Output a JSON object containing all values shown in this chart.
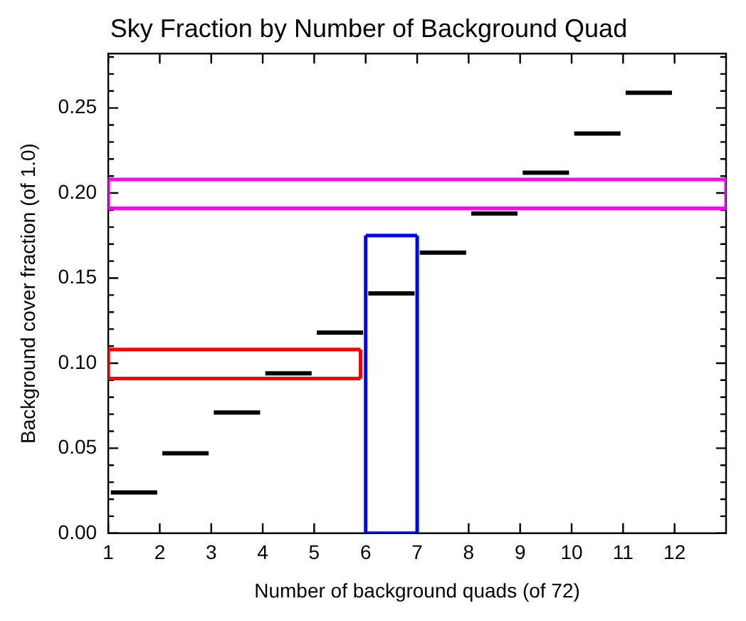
{
  "chart_data": {
    "type": "line",
    "title": "Sky Fraction by Number of Background Quad",
    "xlabel": "Number of background quads (of 72)",
    "ylabel": "Background cover fraction (of 1.0)",
    "xlim": [
      1,
      13
    ],
    "xticks": [
      1,
      2,
      3,
      4,
      5,
      6,
      7,
      8,
      9,
      10,
      11,
      12
    ],
    "ylim": [
      0,
      0.282
    ],
    "yticks": [
      {
        "value": 0,
        "label": "0.00"
      },
      {
        "value": 0.01,
        "label": null
      },
      {
        "value": 0.02,
        "label": null
      },
      {
        "value": 0.03,
        "label": null
      },
      {
        "value": 0.04,
        "label": null
      },
      {
        "value": 0.05,
        "label": "0.05"
      },
      {
        "value": 0.06,
        "label": null
      },
      {
        "value": 0.07,
        "label": null
      },
      {
        "value": 0.08,
        "label": null
      },
      {
        "value": 0.09,
        "label": null
      },
      {
        "value": 0.1,
        "label": "0.10"
      },
      {
        "value": 0.11,
        "label": null
      },
      {
        "value": 0.12,
        "label": null
      },
      {
        "value": 0.13,
        "label": null
      },
      {
        "value": 0.14,
        "label": null
      },
      {
        "value": 0.15,
        "label": "0.15"
      },
      {
        "value": 0.16,
        "label": null
      },
      {
        "value": 0.17,
        "label": null
      },
      {
        "value": 0.18,
        "label": null
      },
      {
        "value": 0.19,
        "label": null
      },
      {
        "value": 0.2,
        "label": "0.20"
      },
      {
        "value": 0.21,
        "label": null
      },
      {
        "value": 0.22,
        "label": null
      },
      {
        "value": 0.23,
        "label": null
      },
      {
        "value": 0.24,
        "label": null
      },
      {
        "value": 0.25,
        "label": "0.25"
      },
      {
        "value": 0.26,
        "label": null
      },
      {
        "value": 0.27,
        "label": null
      },
      {
        "value": 0.28,
        "label": null
      }
    ],
    "grid": false,
    "marker": "none",
    "series": [
      {
        "color": "#000000",
        "x": [
          1.05,
          1.95
        ],
        "values": [
          0.024,
          0.024
        ]
      },
      {
        "color": "#000000",
        "x": [
          2.05,
          2.95
        ],
        "values": [
          0.047,
          0.047
        ]
      },
      {
        "color": "#000000",
        "x": [
          3.05,
          3.95
        ],
        "values": [
          0.071,
          0.071
        ]
      },
      {
        "color": "#000000",
        "x": [
          4.05,
          4.95
        ],
        "values": [
          0.094,
          0.094
        ]
      },
      {
        "color": "#000000",
        "x": [
          5.05,
          5.95
        ],
        "values": [
          0.118,
          0.118
        ]
      },
      {
        "color": "#000000",
        "x": [
          6.05,
          6.95
        ],
        "values": [
          0.141,
          0.141
        ]
      },
      {
        "color": "#000000",
        "x": [
          7.05,
          7.95
        ],
        "values": [
          0.165,
          0.165
        ]
      },
      {
        "color": "#000000",
        "x": [
          8.05,
          8.95
        ],
        "values": [
          0.188,
          0.188
        ]
      },
      {
        "color": "#000000",
        "x": [
          9.05,
          9.95
        ],
        "values": [
          0.212,
          0.212
        ]
      },
      {
        "color": "#000000",
        "x": [
          10.05,
          10.95
        ],
        "values": [
          0.235,
          0.235
        ]
      },
      {
        "color": "#000000",
        "x": [
          11.05,
          11.95
        ],
        "values": [
          0.259,
          0.259
        ]
      },
      {
        "color": "#ff0000",
        "x": [
          1,
          5.9
        ],
        "values": [
          0.091,
          0.091
        ]
      },
      {
        "color": "#ff0000",
        "x": [
          1,
          5.9
        ],
        "values": [
          0.108,
          0.108
        ]
      },
      {
        "color": "#ff0000",
        "x": [
          1,
          1
        ],
        "values": [
          0.091,
          0.108
        ]
      },
      {
        "color": "#ff0000",
        "x": [
          5.9,
          5.9
        ],
        "values": [
          0.091,
          0.108
        ]
      },
      {
        "color": "#0000ff",
        "x": [
          6,
          7
        ],
        "values": [
          0,
          0
        ]
      },
      {
        "color": "#0000ff",
        "x": [
          6,
          7
        ],
        "values": [
          0.175,
          0.175
        ]
      },
      {
        "color": "#0000ff",
        "x": [
          6,
          6
        ],
        "values": [
          0,
          0.175
        ]
      },
      {
        "color": "#0000ff",
        "x": [
          7,
          7
        ],
        "values": [
          0,
          0.175
        ]
      },
      {
        "color": "#ff00ff",
        "x": [
          1,
          13
        ],
        "values": [
          0.191,
          0.191
        ]
      },
      {
        "color": "#ff00ff",
        "x": [
          1,
          13
        ],
        "values": [
          0.208,
          0.208
        ]
      },
      {
        "color": "#ff00ff",
        "x": [
          1,
          1
        ],
        "values": [
          0.191,
          0.208
        ]
      },
      {
        "color": "#ff00ff",
        "x": [
          13,
          13
        ],
        "values": [
          0.191,
          0.208
        ]
      }
    ]
  }
}
